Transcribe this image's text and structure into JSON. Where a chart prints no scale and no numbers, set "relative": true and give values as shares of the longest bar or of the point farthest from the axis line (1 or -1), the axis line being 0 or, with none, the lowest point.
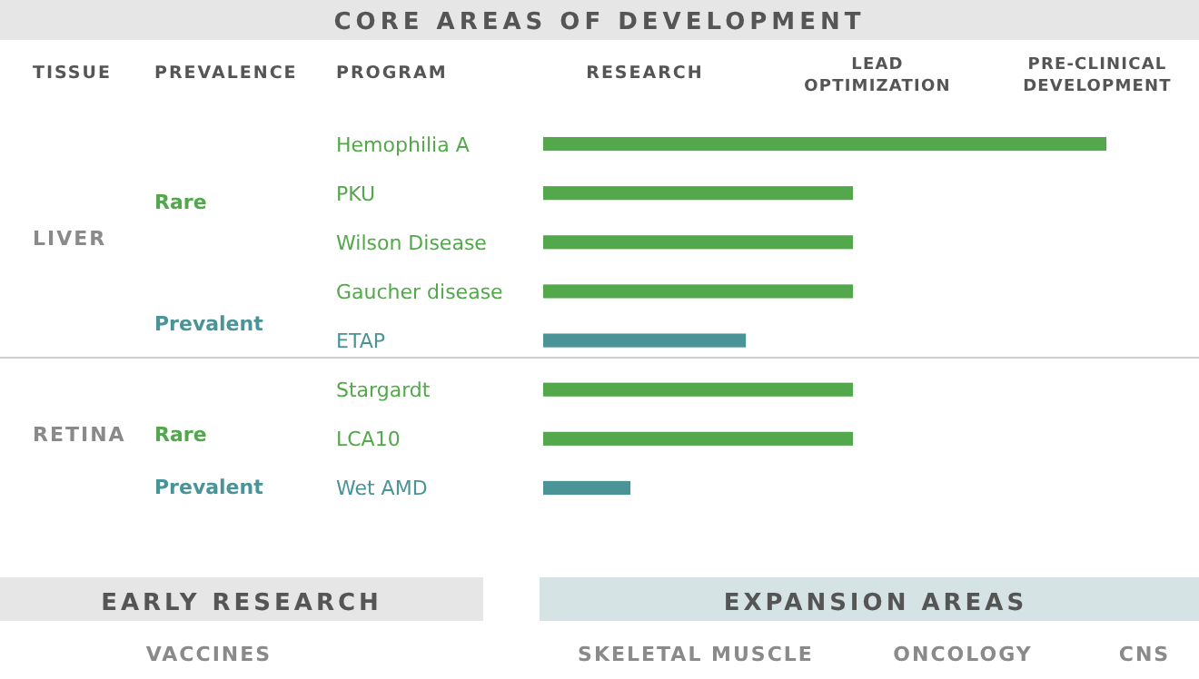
{
  "chart_data": {
    "type": "bar",
    "orientation": "horizontal",
    "relative": true,
    "title": "CORE AREAS OF DEVELOPMENT",
    "categories": [
      "Hemophilia A",
      "PKU",
      "Wilson Disease",
      "Gaucher disease",
      "ETAP",
      "Stargardt",
      "LCA10",
      "Wet AMD"
    ],
    "values": [
      1,
      0.55,
      0.55,
      0.55,
      0.36,
      0.55,
      0.55,
      0.155
    ],
    "colors": [
      "#52a84a",
      "#52a84a",
      "#52a84a",
      "#52a84a",
      "#4a9497",
      "#52a84a",
      "#52a84a",
      "#4a9497"
    ],
    "annotations": [
      "TISSUE",
      "PREVALENCE",
      "PROGRAM",
      "RESEARCH",
      "LEAD OPTIMIZATION",
      "PRE-CLINICAL DEVELOPMENT",
      "LIVER",
      "Rare",
      "Prevalent",
      "RETINA",
      "Rare",
      "Prevalent",
      "EARLY RESEARCH",
      "EXPANSION AREAS",
      "VACCINES",
      "SKELETAL MUSCLE",
      "ONCOLOGY",
      "CNS"
    ]
  }
}
